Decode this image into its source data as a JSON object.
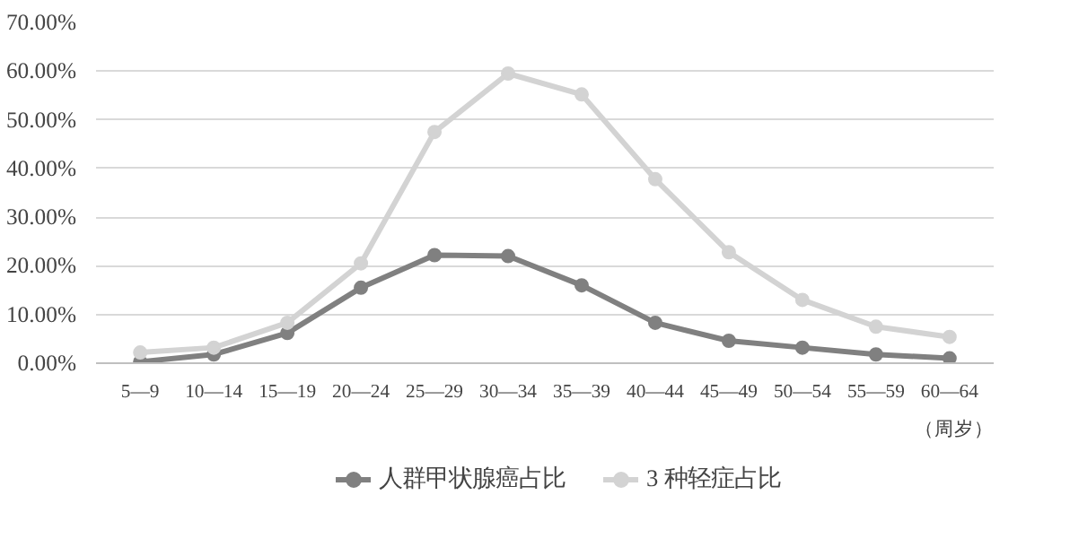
{
  "chart_data": {
    "type": "line",
    "categories": [
      "5—9",
      "10—14",
      "15—19",
      "20—24",
      "25—29",
      "30—34",
      "35—39",
      "40—44",
      "45—49",
      "50—54",
      "55—59",
      "60—64"
    ],
    "series": [
      {
        "name": "人群甲状腺癌占比",
        "color": "#808080",
        "values": [
          0.3,
          1.8,
          6.2,
          15.5,
          22.2,
          22.0,
          16.0,
          8.3,
          4.6,
          3.2,
          1.8,
          1.0
        ]
      },
      {
        "name": "3 种轻症占比",
        "color": "#d3d3d3",
        "values": [
          2.2,
          3.2,
          8.3,
          20.5,
          47.5,
          59.5,
          55.2,
          37.8,
          22.8,
          13.0,
          7.5,
          5.4
        ]
      }
    ],
    "ylim": [
      0,
      70
    ],
    "yticks": [
      {
        "value": 0,
        "label": "0.00%"
      },
      {
        "value": 10,
        "label": "10.00%"
      },
      {
        "value": 20,
        "label": "20.00%"
      },
      {
        "value": 30,
        "label": "30.00%"
      },
      {
        "value": 40,
        "label": "40.00%"
      },
      {
        "value": 50,
        "label": "50.00%"
      },
      {
        "value": 60,
        "label": "60.00%"
      },
      {
        "value": 70,
        "label": "70.00%"
      }
    ],
    "grid": "y",
    "legend": "bottom",
    "marker": "circle",
    "line_style": "solid",
    "annotations": [
      "（周岁）"
    ]
  }
}
